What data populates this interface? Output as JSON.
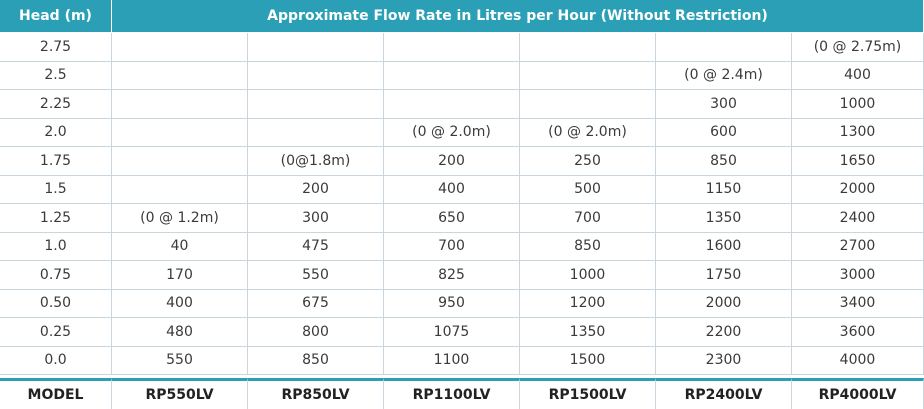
{
  "table": {
    "head_label": "Head (m)",
    "title": "Approximate Flow Rate in Litres per Hour (Without Restriction)",
    "rows": [
      [
        "2.75",
        null,
        null,
        null,
        null,
        null,
        "(0 @ 2.75m)"
      ],
      [
        "2.5",
        null,
        null,
        null,
        null,
        "(0 @ 2.4m)",
        "400"
      ],
      [
        "2.25",
        null,
        null,
        null,
        null,
        "300",
        "1000"
      ],
      [
        "2.0",
        null,
        null,
        "(0 @ 2.0m)",
        "(0 @ 2.0m)",
        "600",
        "1300"
      ],
      [
        "1.75",
        null,
        "(0@1.8m)",
        "200",
        "250",
        "850",
        "1650"
      ],
      [
        "1.5",
        null,
        "200",
        "400",
        "500",
        "1150",
        "2000"
      ],
      [
        "1.25",
        "(0 @ 1.2m)",
        "300",
        "650",
        "700",
        "1350",
        "2400"
      ],
      [
        "1.0",
        "40",
        "475",
        "700",
        "850",
        "1600",
        "2700"
      ],
      [
        "0.75",
        "170",
        "550",
        "825",
        "1000",
        "1750",
        "3000"
      ],
      [
        "0.50",
        "400",
        "675",
        "950",
        "1200",
        "2000",
        "3400"
      ],
      [
        "0.25",
        "480",
        "800",
        "1075",
        "1350",
        "2200",
        "3600"
      ],
      [
        "0.0",
        "550",
        "850",
        "1100",
        "1500",
        "2300",
        "4000"
      ]
    ],
    "footer": [
      "MODEL",
      "RP550LV",
      "RP850LV",
      "RP1100LV",
      "RP1500LV",
      "RP2400LV",
      "RP4000LV"
    ]
  }
}
